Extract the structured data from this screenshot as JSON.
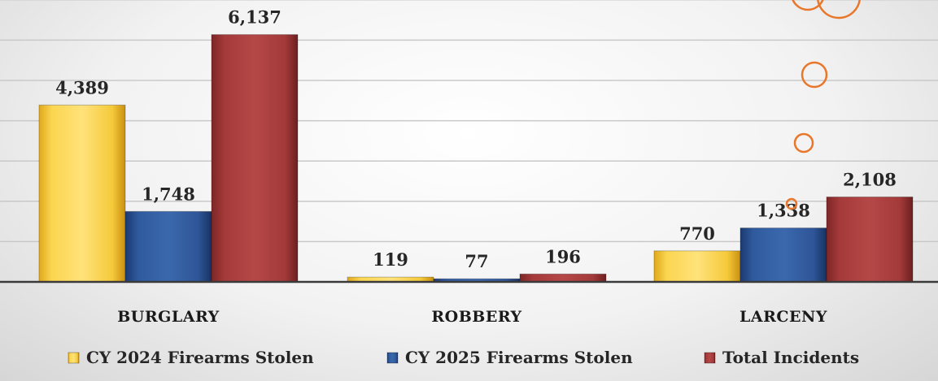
{
  "chart_data": {
    "type": "bar",
    "categories": [
      "BURGLARY",
      "ROBBERY",
      "LARCENY"
    ],
    "series": [
      {
        "name": "CY 2024 Firearms Stolen",
        "values": [
          4389,
          119,
          770
        ],
        "labels": [
          "4,389",
          "119",
          "770"
        ],
        "color": "#f5c93a"
      },
      {
        "name": "CY 2025 Firearms Stolen",
        "values": [
          1748,
          77,
          1338
        ],
        "labels": [
          "1,748",
          "77",
          "1,338"
        ],
        "color": "#2e5597"
      },
      {
        "name": "Total Incidents",
        "values": [
          6137,
          196,
          2108
        ],
        "labels": [
          "6,137",
          "196",
          "2,108"
        ],
        "color": "#a33a3a"
      }
    ],
    "ylim": [
      0,
      7000
    ],
    "grid": true,
    "legend": "bottom",
    "title": "",
    "xlabel": "",
    "ylabel": ""
  },
  "decoration": {
    "bubble_color": "#e8772b"
  }
}
